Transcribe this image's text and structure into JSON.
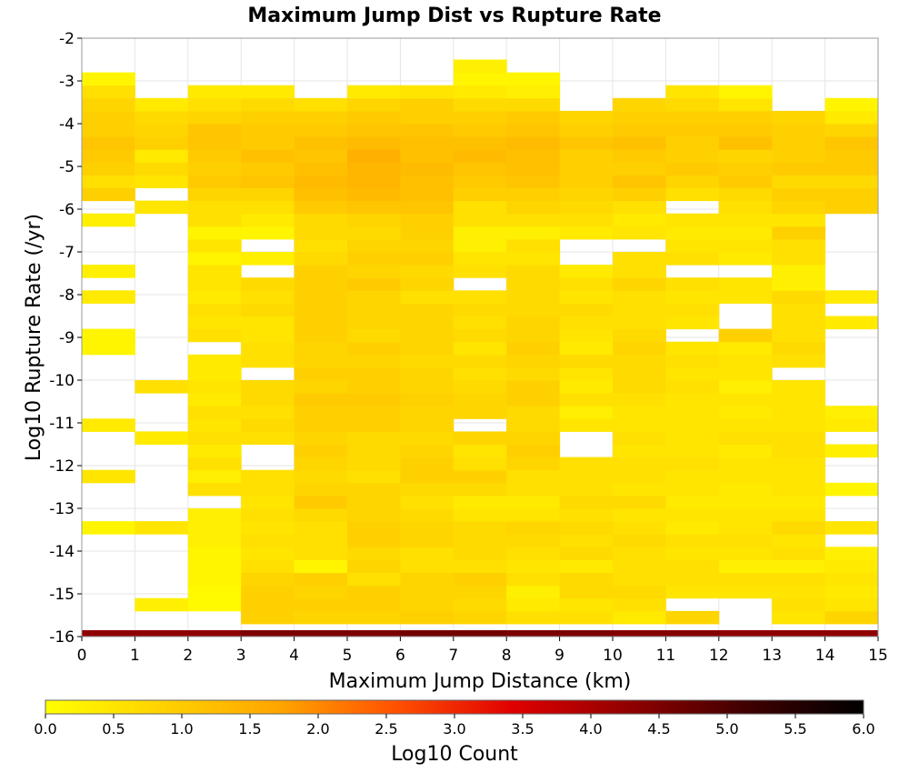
{
  "chart_data": {
    "type": "heatmap",
    "title": "Maximum Jump Dist vs Rupture Rate",
    "xlabel": "Maximum Jump Distance (km)",
    "ylabel": "Log10 Rupture Rate (/yr)",
    "colorbar_label": "Log10 Count",
    "xlim": [
      0,
      15
    ],
    "ylim": [
      -16,
      -2
    ],
    "clim": [
      0.0,
      6.0
    ],
    "x_ticks": [
      "0",
      "1",
      "2",
      "3",
      "4",
      "5",
      "6",
      "7",
      "8",
      "9",
      "10",
      "11",
      "12",
      "13",
      "14",
      "15"
    ],
    "y_ticks": [
      "-2",
      "-3",
      "-4",
      "-5",
      "-6",
      "-7",
      "-8",
      "-9",
      "-10",
      "-11",
      "-12",
      "-13",
      "-14",
      "-15",
      "-16"
    ],
    "colorbar_ticks": [
      "0.0",
      "0.5",
      "1.0",
      "1.5",
      "2.0",
      "2.5",
      "3.0",
      "3.5",
      "4.0",
      "4.5",
      "5.0",
      "5.5",
      "6.0"
    ],
    "grid": true,
    "bin_width_x": 1,
    "bin_height_y": 0.3,
    "y_bin_start": -16,
    "note_values": "Approximate log10 counts per cell estimated from color; empty cells omitted.",
    "rows": [
      {
        "y": -16.0,
        "values": [
          4.3,
          4.3,
          4.3,
          4.5,
          4.5,
          4.5,
          4.6,
          4.6,
          4.5,
          4.5,
          4.4,
          4.4,
          4.3,
          4.3,
          4.3
        ]
      },
      {
        "y": -15.7,
        "values": [
          null,
          null,
          null,
          0.9,
          0.8,
          0.8,
          0.9,
          0.8,
          0.6,
          0.6,
          0.4,
          0.8,
          null,
          0.5,
          0.8
        ]
      },
      {
        "y": -15.4,
        "values": [
          null,
          0.3,
          0.1,
          0.9,
          0.9,
          0.9,
          0.8,
          0.7,
          0.4,
          0.5,
          0.6,
          null,
          null,
          0.6,
          0.5
        ]
      },
      {
        "y": -15.1,
        "values": [
          null,
          null,
          0.1,
          0.9,
          0.8,
          0.9,
          0.8,
          0.8,
          0.3,
          0.7,
          0.7,
          0.5,
          0.5,
          0.5,
          0.4
        ]
      },
      {
        "y": -14.8,
        "values": [
          null,
          null,
          0.2,
          0.8,
          0.9,
          0.6,
          0.8,
          0.9,
          0.6,
          0.7,
          0.6,
          0.6,
          0.6,
          0.6,
          0.5
        ]
      },
      {
        "y": -14.5,
        "values": [
          null,
          null,
          0.2,
          0.6,
          0.2,
          0.8,
          0.6,
          0.6,
          0.5,
          0.4,
          0.6,
          0.6,
          0.3,
          0.3,
          0.4
        ]
      },
      {
        "y": -14.2,
        "values": [
          null,
          null,
          0.2,
          0.5,
          0.6,
          0.7,
          0.6,
          0.7,
          0.6,
          0.7,
          0.6,
          0.5,
          0.5,
          0.6,
          0.3
        ]
      },
      {
        "y": -13.9,
        "values": [
          null,
          null,
          0.3,
          0.6,
          0.6,
          0.9,
          0.8,
          0.7,
          0.7,
          0.6,
          0.7,
          0.6,
          0.6,
          0.5,
          null
        ]
      },
      {
        "y": -13.6,
        "values": [
          0.2,
          0.5,
          0.3,
          0.5,
          0.6,
          0.9,
          0.8,
          0.7,
          0.8,
          0.7,
          0.6,
          0.4,
          0.5,
          0.7,
          0.5
        ]
      },
      {
        "y": -13.3,
        "values": [
          null,
          null,
          0.3,
          0.6,
          0.7,
          0.8,
          0.7,
          0.5,
          0.5,
          0.6,
          0.5,
          0.5,
          0.5,
          0.5,
          null
        ]
      },
      {
        "y": -13.0,
        "values": [
          null,
          null,
          null,
          0.5,
          1.0,
          0.8,
          0.6,
          0.4,
          0.4,
          0.7,
          0.7,
          0.4,
          0.4,
          0.4,
          null
        ]
      },
      {
        "y": -12.7,
        "values": [
          null,
          null,
          0.6,
          0.6,
          0.8,
          0.8,
          0.7,
          0.7,
          0.6,
          0.6,
          0.5,
          0.5,
          0.4,
          0.5,
          0.2
        ]
      },
      {
        "y": -12.4,
        "values": [
          0.5,
          null,
          0.3,
          0.6,
          0.7,
          0.6,
          0.9,
          0.9,
          0.6,
          0.6,
          0.6,
          0.5,
          0.5,
          0.5,
          null
        ]
      },
      {
        "y": -12.1,
        "values": [
          null,
          null,
          0.6,
          null,
          0.8,
          0.7,
          0.9,
          0.6,
          0.8,
          0.6,
          0.6,
          0.6,
          0.5,
          0.5,
          null
        ]
      },
      {
        "y": -11.8,
        "values": [
          null,
          null,
          0.4,
          null,
          0.9,
          0.7,
          0.8,
          0.5,
          0.9,
          null,
          0.5,
          0.5,
          0.4,
          0.6,
          0.3
        ]
      },
      {
        "y": -11.5,
        "values": [
          null,
          0.4,
          0.6,
          0.6,
          0.8,
          0.7,
          0.7,
          0.8,
          0.8,
          null,
          0.6,
          0.5,
          0.6,
          0.6,
          null
        ]
      },
      {
        "y": -11.2,
        "values": [
          0.4,
          null,
          0.5,
          0.7,
          0.9,
          0.9,
          0.8,
          null,
          0.7,
          0.5,
          0.5,
          0.5,
          0.5,
          0.5,
          0.4
        ]
      },
      {
        "y": -10.9,
        "values": [
          null,
          null,
          0.6,
          0.6,
          0.9,
          0.9,
          0.8,
          0.8,
          0.7,
          0.3,
          0.5,
          0.5,
          0.4,
          0.5,
          0.3
        ]
      },
      {
        "y": -10.6,
        "values": [
          null,
          null,
          0.4,
          0.7,
          1.0,
          1.0,
          0.9,
          0.8,
          0.9,
          0.6,
          0.6,
          0.5,
          0.5,
          0.5,
          null
        ]
      },
      {
        "y": -10.3,
        "values": [
          null,
          0.6,
          0.5,
          0.7,
          0.8,
          0.9,
          0.8,
          0.7,
          0.9,
          0.4,
          0.7,
          0.6,
          0.3,
          0.5,
          null
        ]
      },
      {
        "y": -10.0,
        "values": [
          null,
          null,
          0.4,
          null,
          0.9,
          0.9,
          0.8,
          0.6,
          0.7,
          0.5,
          0.7,
          0.5,
          0.5,
          null,
          null
        ]
      },
      {
        "y": -9.7,
        "values": [
          null,
          null,
          0.4,
          0.6,
          0.8,
          0.8,
          0.7,
          0.7,
          0.8,
          0.7,
          0.7,
          0.6,
          0.5,
          0.6,
          null
        ]
      },
      {
        "y": -9.4,
        "values": [
          0.2,
          null,
          null,
          0.6,
          0.8,
          0.9,
          0.8,
          0.5,
          0.9,
          0.4,
          0.8,
          0.5,
          0.4,
          0.7,
          null
        ]
      },
      {
        "y": -9.1,
        "values": [
          0.2,
          null,
          0.6,
          0.5,
          0.9,
          0.7,
          0.8,
          0.7,
          0.8,
          0.5,
          0.7,
          null,
          0.9,
          0.6,
          null
        ]
      },
      {
        "y": -8.8,
        "values": [
          null,
          null,
          0.5,
          0.5,
          0.9,
          0.8,
          0.8,
          0.6,
          0.8,
          0.6,
          0.6,
          0.5,
          null,
          0.6,
          0.4
        ]
      },
      {
        "y": -8.5,
        "values": [
          null,
          null,
          0.6,
          0.7,
          0.9,
          0.8,
          0.8,
          0.7,
          0.7,
          0.7,
          0.6,
          0.6,
          null,
          0.6,
          null
        ]
      },
      {
        "y": -8.2,
        "values": [
          0.4,
          null,
          0.4,
          0.6,
          0.9,
          0.8,
          0.6,
          0.6,
          0.7,
          0.5,
          0.6,
          0.5,
          0.5,
          0.7,
          0.4
        ]
      },
      {
        "y": -7.9,
        "values": [
          null,
          null,
          0.5,
          0.7,
          0.9,
          1.0,
          0.8,
          null,
          0.7,
          0.6,
          0.8,
          0.6,
          0.5,
          0.3,
          null
        ]
      },
      {
        "y": -7.6,
        "values": [
          0.3,
          null,
          0.5,
          null,
          0.9,
          0.8,
          0.7,
          0.6,
          0.7,
          0.4,
          0.6,
          null,
          null,
          0.3,
          null
        ]
      },
      {
        "y": -7.3,
        "values": [
          null,
          null,
          0.2,
          0.3,
          0.7,
          0.9,
          0.9,
          0.5,
          0.5,
          null,
          0.6,
          0.6,
          0.4,
          0.6,
          null
        ]
      },
      {
        "y": -7.0,
        "values": [
          null,
          null,
          0.5,
          null,
          0.6,
          0.8,
          0.8,
          0.3,
          0.6,
          null,
          null,
          0.5,
          0.5,
          0.6,
          null
        ]
      },
      {
        "y": -6.7,
        "values": [
          null,
          null,
          0.2,
          0.2,
          0.7,
          0.7,
          0.9,
          0.3,
          0.3,
          0.4,
          0.5,
          0.4,
          0.4,
          0.9,
          null
        ]
      },
      {
        "y": -6.4,
        "values": [
          0.3,
          null,
          0.6,
          0.4,
          0.7,
          0.8,
          0.9,
          0.6,
          0.6,
          0.6,
          0.4,
          0.5,
          0.5,
          0.5,
          null
        ]
      },
      {
        "y": -6.1,
        "values": [
          null,
          0.5,
          0.6,
          0.6,
          1.0,
          1.1,
          1.1,
          0.6,
          0.8,
          0.7,
          0.6,
          null,
          0.6,
          0.8,
          0.9
        ]
      },
      {
        "y": -5.8,
        "values": [
          0.9,
          null,
          0.8,
          0.8,
          1.2,
          1.3,
          1.2,
          0.9,
          0.9,
          0.8,
          0.9,
          0.6,
          0.7,
          0.9,
          0.9
        ]
      },
      {
        "y": -5.5,
        "values": [
          0.6,
          0.5,
          1.0,
          1.1,
          1.3,
          1.4,
          1.2,
          1.0,
          1.1,
          0.9,
          1.1,
          0.8,
          1.0,
          0.7,
          0.7
        ]
      },
      {
        "y": -5.2,
        "values": [
          0.9,
          0.7,
          0.9,
          1.0,
          1.2,
          1.4,
          1.3,
          1.1,
          1.2,
          0.9,
          0.9,
          1.0,
          0.9,
          1.0,
          1.0
        ]
      },
      {
        "y": -4.9,
        "values": [
          1.0,
          0.4,
          1.0,
          1.2,
          1.1,
          1.5,
          1.2,
          1.3,
          1.2,
          0.9,
          1.0,
          0.9,
          0.8,
          0.9,
          1.0
        ]
      },
      {
        "y": -4.6,
        "values": [
          1.1,
          0.9,
          1.1,
          1.0,
          1.2,
          1.3,
          1.2,
          1.2,
          1.3,
          1.1,
          1.2,
          0.9,
          1.2,
          0.9,
          1.1
        ]
      },
      {
        "y": -4.3,
        "values": [
          0.9,
          0.8,
          1.1,
          1.0,
          1.0,
          1.1,
          1.1,
          1.0,
          1.1,
          0.9,
          1.0,
          1.0,
          1.0,
          0.9,
          0.8
        ]
      },
      {
        "y": -4.0,
        "values": [
          0.9,
          0.7,
          0.8,
          0.9,
          0.9,
          1.0,
          0.9,
          0.9,
          1.0,
          0.8,
          0.9,
          0.9,
          0.9,
          0.8,
          0.4
        ]
      },
      {
        "y": -3.7,
        "values": [
          0.8,
          0.4,
          0.6,
          0.7,
          0.6,
          0.8,
          0.9,
          0.7,
          0.7,
          null,
          0.8,
          0.7,
          0.5,
          null,
          0.2
        ]
      },
      {
        "y": -3.4,
        "values": [
          0.6,
          null,
          0.4,
          0.4,
          null,
          0.4,
          0.5,
          0.4,
          0.3,
          null,
          null,
          0.5,
          0.2,
          null,
          null
        ]
      },
      {
        "y": -3.1,
        "values": [
          0.2,
          null,
          null,
          null,
          null,
          null,
          null,
          0.2,
          0.2,
          null,
          null,
          null,
          null,
          null,
          null
        ]
      },
      {
        "y": -2.8,
        "values": [
          null,
          null,
          null,
          null,
          null,
          null,
          null,
          0.3,
          null,
          null,
          null,
          null,
          null,
          null,
          null
        ]
      }
    ],
    "colormap": [
      "#ffff00",
      "#ffd200",
      "#ffa500",
      "#ff5000",
      "#e00000",
      "#900000",
      "#400000",
      "#000000"
    ]
  }
}
